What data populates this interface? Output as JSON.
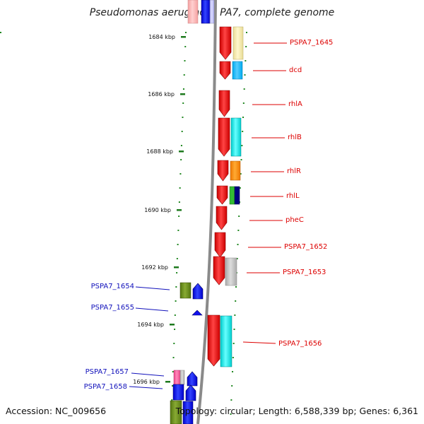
{
  "title": "Pseudomonas aeruginosa PA7, complete genome",
  "accession": "Accession: NC_009656",
  "topology": "Topology: circular; Length: 6,588,339 bp; Genes: 6,361",
  "ruler_labels": [
    "1684 kbp",
    "1686 kbp",
    "1688 kbp",
    "1690 kbp",
    "1692 kbp",
    "1694 kbp",
    "1696 kbp"
  ],
  "genes": [
    {
      "name": "PSPA7_1645",
      "color": "#dd0000"
    },
    {
      "name": "dcd",
      "color": "#dd0000"
    },
    {
      "name": "rhlA",
      "color": "#dd0000"
    },
    {
      "name": "rhlB",
      "color": "#dd0000"
    },
    {
      "name": "rhlR",
      "color": "#dd0000"
    },
    {
      "name": "rhlL",
      "color": "#dd0000"
    },
    {
      "name": "pheC",
      "color": "#dd0000"
    },
    {
      "name": "PSPA7_1652",
      "color": "#dd0000"
    },
    {
      "name": "PSPA7_1653",
      "color": "#dd0000"
    },
    {
      "name": "PSPA7_1654",
      "color": "#1111bb"
    },
    {
      "name": "PSPA7_1655",
      "color": "#1111bb"
    },
    {
      "name": "PSPA7_1656",
      "color": "#dd0000"
    },
    {
      "name": "PSPA7_1657",
      "color": "#1111bb"
    },
    {
      "name": "PSPA7_1658",
      "color": "#1111bb"
    }
  ]
}
